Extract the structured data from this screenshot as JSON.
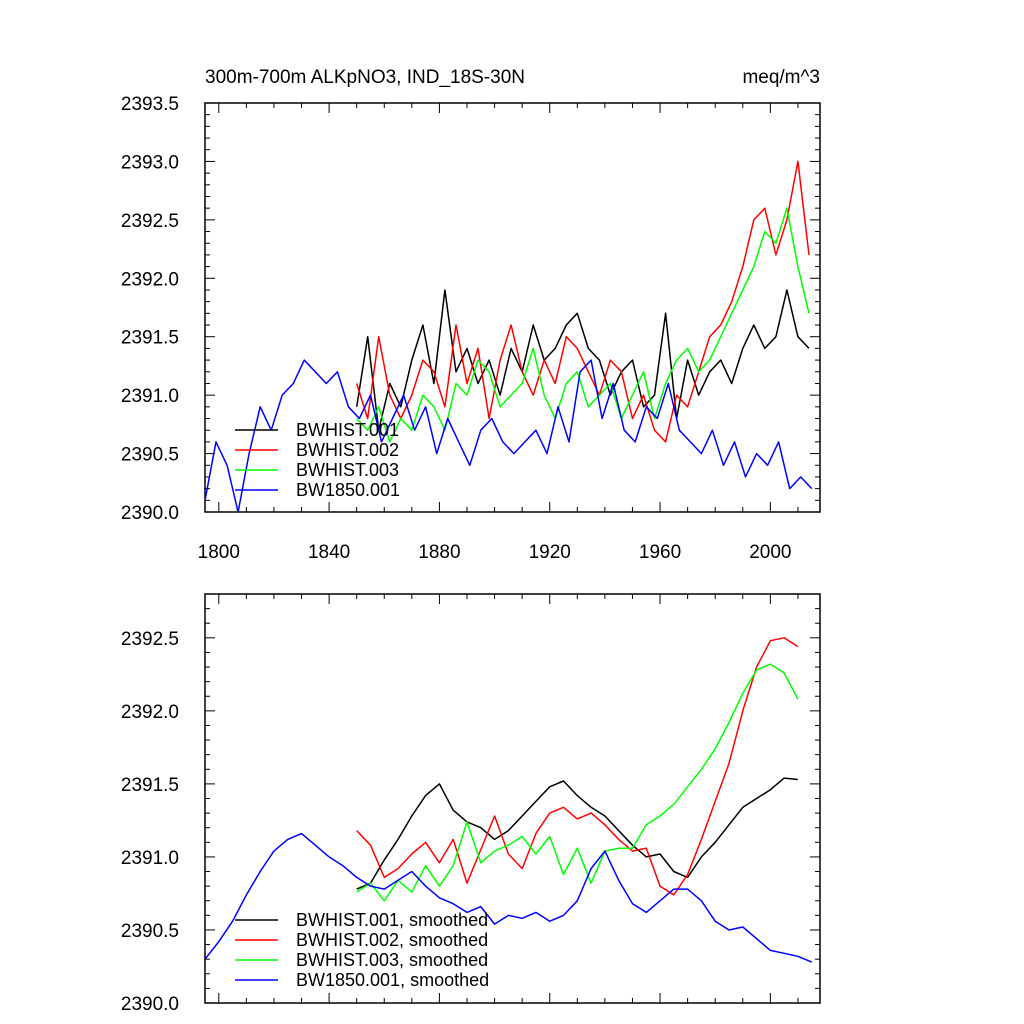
{
  "chart_data": [
    {
      "type": "line",
      "title_left": "300m-700m ALKpNO3, IND_18S-30N",
      "title_right": "meq/m^3",
      "xlim": [
        1795,
        2018
      ],
      "ylim": [
        2390.0,
        2393.5
      ],
      "x_ticks": [
        1800,
        1840,
        1880,
        1920,
        1960,
        2000
      ],
      "x_tick_labels": [
        "1800",
        "1840",
        "1880",
        "1920",
        "1960",
        "2000"
      ],
      "y_ticks": [
        2390.0,
        2390.5,
        2391.0,
        2391.5,
        2392.0,
        2392.5,
        2393.0,
        2393.5
      ],
      "y_tick_labels": [
        "2390.0",
        "2390.5",
        "2391.0",
        "2391.5",
        "2392.0",
        "2392.5",
        "2393.0",
        "2393.5"
      ],
      "legend_position": "bottom-left",
      "series": [
        {
          "name": "BWHIST.001",
          "color": "#000000",
          "x": [
            1850,
            1854,
            1858,
            1862,
            1866,
            1870,
            1874,
            1878,
            1882,
            1886,
            1890,
            1894,
            1898,
            1902,
            1906,
            1910,
            1914,
            1918,
            1922,
            1926,
            1930,
            1934,
            1938,
            1942,
            1946,
            1950,
            1954,
            1958,
            1962,
            1966,
            1970,
            1974,
            1978,
            1982,
            1986,
            1990,
            1994,
            1998,
            2002,
            2006,
            2010,
            2014
          ],
          "y": [
            2390.9,
            2391.5,
            2390.7,
            2391.1,
            2390.9,
            2391.3,
            2391.6,
            2391.1,
            2391.9,
            2391.2,
            2391.4,
            2391.1,
            2391.3,
            2391.0,
            2391.4,
            2391.2,
            2391.6,
            2391.3,
            2391.4,
            2391.6,
            2391.7,
            2391.4,
            2391.3,
            2391.0,
            2391.2,
            2391.3,
            2390.9,
            2391.0,
            2391.7,
            2390.8,
            2391.3,
            2391.0,
            2391.2,
            2391.3,
            2391.1,
            2391.4,
            2391.6,
            2391.4,
            2391.5,
            2391.9,
            2391.5,
            2391.4
          ]
        },
        {
          "name": "BWHIST.002",
          "color": "#ff0000",
          "x": [
            1850,
            1854,
            1858,
            1862,
            1866,
            1870,
            1874,
            1878,
            1882,
            1886,
            1890,
            1894,
            1898,
            1902,
            1906,
            1910,
            1914,
            1918,
            1922,
            1926,
            1930,
            1934,
            1938,
            1942,
            1946,
            1950,
            1954,
            1958,
            1962,
            1966,
            1970,
            1974,
            1978,
            1982,
            1986,
            1990,
            1994,
            1998,
            2002,
            2006,
            2010,
            2014
          ],
          "y": [
            2391.1,
            2390.8,
            2391.5,
            2391.0,
            2390.8,
            2391.0,
            2391.3,
            2391.2,
            2390.9,
            2391.6,
            2391.1,
            2391.4,
            2390.8,
            2391.3,
            2391.6,
            2391.2,
            2391.0,
            2391.3,
            2391.1,
            2391.5,
            2391.4,
            2391.2,
            2391.0,
            2391.3,
            2391.2,
            2390.8,
            2391.0,
            2390.7,
            2390.6,
            2391.0,
            2390.9,
            2391.2,
            2391.5,
            2391.6,
            2391.8,
            2392.1,
            2392.5,
            2392.6,
            2392.2,
            2392.5,
            2393.0,
            2392.2
          ]
        },
        {
          "name": "BWHIST.003",
          "color": "#00ff00",
          "x": [
            1850,
            1854,
            1858,
            1862,
            1866,
            1870,
            1874,
            1878,
            1882,
            1886,
            1890,
            1894,
            1898,
            1902,
            1906,
            1910,
            1914,
            1918,
            1922,
            1926,
            1930,
            1934,
            1938,
            1942,
            1946,
            1950,
            1954,
            1958,
            1962,
            1966,
            1970,
            1974,
            1978,
            1982,
            1986,
            1990,
            1994,
            1998,
            2002,
            2006,
            2010,
            2014
          ],
          "y": [
            2390.8,
            2390.7,
            2390.9,
            2390.6,
            2390.8,
            2390.7,
            2391.0,
            2390.9,
            2390.7,
            2391.1,
            2391.0,
            2391.3,
            2391.2,
            2390.9,
            2391.0,
            2391.1,
            2391.4,
            2391.0,
            2390.8,
            2391.1,
            2391.2,
            2390.9,
            2391.0,
            2391.1,
            2390.8,
            2391.0,
            2391.2,
            2390.8,
            2391.1,
            2391.3,
            2391.4,
            2391.2,
            2391.3,
            2391.5,
            2391.7,
            2391.9,
            2392.1,
            2392.4,
            2392.3,
            2392.6,
            2392.1,
            2391.7
          ]
        },
        {
          "name": "BW1850.001",
          "color": "#0000ff",
          "x": [
            1795,
            1799,
            1803,
            1807,
            1811,
            1815,
            1819,
            1823,
            1827,
            1831,
            1835,
            1839,
            1843,
            1847,
            1851,
            1855,
            1859,
            1863,
            1867,
            1871,
            1875,
            1879,
            1883,
            1887,
            1891,
            1895,
            1899,
            1903,
            1907,
            1911,
            1915,
            1919,
            1923,
            1927,
            1931,
            1935,
            1939,
            1943,
            1947,
            1951,
            1955,
            1959,
            1963,
            1967,
            1971,
            1975,
            1979,
            1983,
            1987,
            1991,
            1995,
            1999,
            2003,
            2007,
            2011,
            2015
          ],
          "y": [
            2390.1,
            2390.6,
            2390.4,
            2390.0,
            2390.5,
            2390.9,
            2390.7,
            2391.0,
            2391.1,
            2391.3,
            2391.2,
            2391.1,
            2391.2,
            2390.9,
            2390.8,
            2391.0,
            2390.6,
            2390.8,
            2391.0,
            2390.7,
            2390.9,
            2390.5,
            2390.8,
            2390.6,
            2390.4,
            2390.7,
            2390.8,
            2390.6,
            2390.5,
            2390.6,
            2390.7,
            2390.5,
            2390.9,
            2390.6,
            2391.2,
            2391.3,
            2390.8,
            2391.1,
            2390.7,
            2390.6,
            2390.9,
            2390.8,
            2391.1,
            2390.7,
            2390.6,
            2390.5,
            2390.7,
            2390.4,
            2390.6,
            2390.3,
            2390.5,
            2390.4,
            2390.6,
            2390.2,
            2390.3,
            2390.2
          ]
        }
      ]
    },
    {
      "type": "line",
      "xlim": [
        1795,
        2018
      ],
      "ylim": [
        2390.0,
        2392.8
      ],
      "x_ticks": [
        1800,
        1840,
        1880,
        1920,
        1960,
        2000
      ],
      "y_ticks": [
        2390.0,
        2390.5,
        2391.0,
        2391.5,
        2392.0,
        2392.5
      ],
      "y_tick_labels": [
        "2390.0",
        "2390.5",
        "2391.0",
        "2391.5",
        "2392.0",
        "2392.5"
      ],
      "legend_position": "bottom-left",
      "series": [
        {
          "name": "BWHIST.001, smoothed",
          "color": "#000000",
          "x": [
            1850,
            1855,
            1860,
            1865,
            1870,
            1875,
            1880,
            1885,
            1890,
            1895,
            1900,
            1905,
            1910,
            1915,
            1920,
            1925,
            1930,
            1935,
            1940,
            1945,
            1950,
            1955,
            1960,
            1965,
            1970,
            1975,
            1980,
            1985,
            1990,
            1995,
            2000,
            2005,
            2010
          ],
          "y": [
            2390.78,
            2390.82,
            2390.98,
            2391.12,
            2391.28,
            2391.42,
            2391.5,
            2391.32,
            2391.24,
            2391.2,
            2391.12,
            2391.18,
            2391.28,
            2391.38,
            2391.48,
            2391.52,
            2391.42,
            2391.34,
            2391.28,
            2391.18,
            2391.08,
            2391.0,
            2391.02,
            2390.9,
            2390.86,
            2391.0,
            2391.1,
            2391.22,
            2391.34,
            2391.4,
            2391.46,
            2391.54,
            2391.53
          ]
        },
        {
          "name": "BWHIST.002, smoothed",
          "color": "#ff0000",
          "x": [
            1850,
            1855,
            1860,
            1865,
            1870,
            1875,
            1880,
            1885,
            1890,
            1895,
            1900,
            1905,
            1910,
            1915,
            1920,
            1925,
            1930,
            1935,
            1940,
            1945,
            1950,
            1955,
            1960,
            1965,
            1970,
            1975,
            1980,
            1985,
            1990,
            1995,
            2000,
            2005,
            2010
          ],
          "y": [
            2391.18,
            2391.08,
            2390.86,
            2390.92,
            2391.02,
            2391.1,
            2390.96,
            2391.12,
            2390.82,
            2391.05,
            2391.28,
            2391.02,
            2390.92,
            2391.16,
            2391.3,
            2391.34,
            2391.26,
            2391.3,
            2391.22,
            2391.12,
            2391.04,
            2391.06,
            2390.8,
            2390.74,
            2390.88,
            2391.12,
            2391.38,
            2391.64,
            2392.0,
            2392.3,
            2392.48,
            2392.5,
            2392.44
          ]
        },
        {
          "name": "BWHIST.003, smoothed",
          "color": "#00ff00",
          "x": [
            1850,
            1855,
            1860,
            1865,
            1870,
            1875,
            1880,
            1885,
            1890,
            1895,
            1900,
            1905,
            1910,
            1915,
            1920,
            1925,
            1930,
            1935,
            1940,
            1945,
            1950,
            1955,
            1960,
            1965,
            1970,
            1975,
            1980,
            1985,
            1990,
            1995,
            2000,
            2005,
            2010
          ],
          "y": [
            2390.76,
            2390.82,
            2390.7,
            2390.84,
            2390.76,
            2390.94,
            2390.8,
            2390.94,
            2391.24,
            2390.96,
            2391.04,
            2391.08,
            2391.14,
            2391.02,
            2391.14,
            2390.88,
            2391.06,
            2390.82,
            2391.04,
            2391.06,
            2391.06,
            2391.22,
            2391.28,
            2391.36,
            2391.48,
            2391.6,
            2391.74,
            2391.92,
            2392.12,
            2392.28,
            2392.32,
            2392.26,
            2392.08
          ]
        },
        {
          "name": "BW1850.001, smoothed",
          "color": "#0000ff",
          "x": [
            1795,
            1800,
            1805,
            1810,
            1815,
            1820,
            1825,
            1830,
            1835,
            1840,
            1845,
            1850,
            1855,
            1860,
            1865,
            1870,
            1875,
            1880,
            1885,
            1890,
            1895,
            1900,
            1905,
            1910,
            1915,
            1920,
            1925,
            1930,
            1935,
            1940,
            1945,
            1950,
            1955,
            1960,
            1965,
            1970,
            1975,
            1980,
            1985,
            1990,
            1995,
            2000,
            2005,
            2010,
            2015
          ],
          "y": [
            2390.3,
            2390.42,
            2390.56,
            2390.74,
            2390.9,
            2391.04,
            2391.12,
            2391.16,
            2391.08,
            2391.0,
            2390.94,
            2390.86,
            2390.8,
            2390.78,
            2390.84,
            2390.9,
            2390.8,
            2390.72,
            2390.68,
            2390.62,
            2390.66,
            2390.54,
            2390.6,
            2390.58,
            2390.62,
            2390.56,
            2390.6,
            2390.7,
            2390.92,
            2391.04,
            2390.84,
            2390.68,
            2390.62,
            2390.7,
            2390.78,
            2390.78,
            2390.7,
            2390.56,
            2390.5,
            2390.52,
            2390.44,
            2390.36,
            2390.34,
            2390.32,
            2390.28
          ]
        }
      ]
    }
  ]
}
